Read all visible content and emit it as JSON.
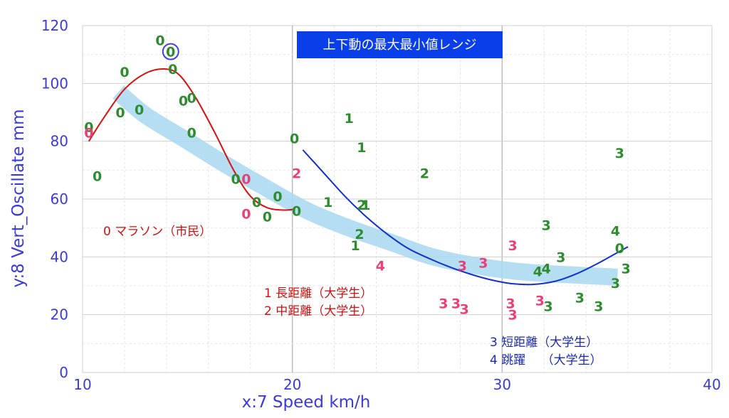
{
  "chart_data": {
    "type": "scatter",
    "title": "上下動の最大最小値レンジ",
    "xlabel": "x:7 Speed km/h",
    "ylabel": "y:8 Vert_Oscillate mm",
    "xlim": [
      10,
      40
    ],
    "ylim": [
      0,
      120
    ],
    "x_ticks": [
      "10",
      "20",
      "30",
      "40"
    ],
    "y_ticks": [
      "0",
      "20",
      "40",
      "60",
      "80",
      "100",
      "120"
    ],
    "grid": true,
    "legend": [
      {
        "group": "0",
        "text": "0  マラソン（市民）",
        "color": "#d01010"
      },
      {
        "group": "1",
        "text": "1  長距離（大学生）",
        "color": "#d01010"
      },
      {
        "group": "2",
        "text": "2  中距離（大学生）",
        "color": "#d01010"
      },
      {
        "group": "3",
        "text": "3  短距離（大学生）",
        "color": "#1a2ab0"
      },
      {
        "group": "4",
        "text": "4  跳躍　 （大学生）",
        "color": "#1a2ab0"
      }
    ],
    "colors": {
      "green": "#2e8b2e",
      "pink": "#e8407a",
      "red_curve": "#d81010",
      "blue_curve": "#1030d0",
      "band": "#a8d8f0",
      "axis_text": "#3a3ad8",
      "title_bg": "#0a3ee8"
    },
    "points": [
      {
        "x": 10.3,
        "y": 85,
        "label": "0",
        "color": "green"
      },
      {
        "x": 10.3,
        "y": 83,
        "label": "0",
        "color": "pink"
      },
      {
        "x": 10.7,
        "y": 68,
        "label": "0",
        "color": "green"
      },
      {
        "x": 11.8,
        "y": 90,
        "label": "0",
        "color": "green"
      },
      {
        "x": 12.0,
        "y": 104,
        "label": "0",
        "color": "green"
      },
      {
        "x": 12.7,
        "y": 91,
        "label": "0",
        "color": "green"
      },
      {
        "x": 13.7,
        "y": 115,
        "label": "0",
        "color": "green"
      },
      {
        "x": 14.2,
        "y": 111,
        "label": "0",
        "color": "green"
      },
      {
        "x": 14.3,
        "y": 105,
        "label": "0",
        "color": "green"
      },
      {
        "x": 14.8,
        "y": 94,
        "label": "0",
        "color": "green"
      },
      {
        "x": 15.2,
        "y": 95,
        "label": "0",
        "color": "green"
      },
      {
        "x": 15.2,
        "y": 83,
        "label": "0",
        "color": "green"
      },
      {
        "x": 17.3,
        "y": 67,
        "label": "0",
        "color": "green"
      },
      {
        "x": 17.8,
        "y": 67,
        "label": "0",
        "color": "pink"
      },
      {
        "x": 17.8,
        "y": 55,
        "label": "0",
        "color": "pink"
      },
      {
        "x": 18.3,
        "y": 59,
        "label": "0",
        "color": "green"
      },
      {
        "x": 18.8,
        "y": 54,
        "label": "0",
        "color": "green"
      },
      {
        "x": 19.3,
        "y": 61,
        "label": "0",
        "color": "green"
      },
      {
        "x": 20.1,
        "y": 81,
        "label": "0",
        "color": "green"
      },
      {
        "x": 20.2,
        "y": 56,
        "label": "0",
        "color": "green"
      },
      {
        "x": 22.7,
        "y": 88,
        "label": "1",
        "color": "green"
      },
      {
        "x": 23.3,
        "y": 78,
        "label": "1",
        "color": "green"
      },
      {
        "x": 21.7,
        "y": 59,
        "label": "1",
        "color": "green"
      },
      {
        "x": 23.5,
        "y": 58,
        "label": "1",
        "color": "green"
      },
      {
        "x": 23.0,
        "y": 44,
        "label": "1",
        "color": "green"
      },
      {
        "x": 23.3,
        "y": 58,
        "label": "2",
        "color": "green"
      },
      {
        "x": 26.3,
        "y": 69,
        "label": "2",
        "color": "green"
      },
      {
        "x": 23.2,
        "y": 48,
        "label": "2",
        "color": "green"
      },
      {
        "x": 20.2,
        "y": 69,
        "label": "2",
        "color": "pink"
      },
      {
        "x": 24.2,
        "y": 37,
        "label": "4",
        "color": "pink"
      },
      {
        "x": 28.1,
        "y": 37,
        "label": "3",
        "color": "pink"
      },
      {
        "x": 29.1,
        "y": 38,
        "label": "3",
        "color": "pink"
      },
      {
        "x": 30.5,
        "y": 44,
        "label": "3",
        "color": "pink"
      },
      {
        "x": 27.2,
        "y": 24,
        "label": "3",
        "color": "pink"
      },
      {
        "x": 27.8,
        "y": 24,
        "label": "3",
        "color": "pink"
      },
      {
        "x": 28.2,
        "y": 22,
        "label": "3",
        "color": "pink"
      },
      {
        "x": 30.4,
        "y": 24,
        "label": "3",
        "color": "pink"
      },
      {
        "x": 30.5,
        "y": 20,
        "label": "3",
        "color": "pink"
      },
      {
        "x": 31.8,
        "y": 25,
        "label": "3",
        "color": "pink"
      },
      {
        "x": 32.1,
        "y": 51,
        "label": "3",
        "color": "green"
      },
      {
        "x": 32.8,
        "y": 40,
        "label": "3",
        "color": "green"
      },
      {
        "x": 32.2,
        "y": 23,
        "label": "3",
        "color": "green"
      },
      {
        "x": 33.7,
        "y": 26,
        "label": "3",
        "color": "green"
      },
      {
        "x": 34.6,
        "y": 23,
        "label": "3",
        "color": "green"
      },
      {
        "x": 35.6,
        "y": 76,
        "label": "3",
        "color": "green"
      },
      {
        "x": 35.4,
        "y": 31,
        "label": "3",
        "color": "green"
      },
      {
        "x": 35.9,
        "y": 36,
        "label": "3",
        "color": "green"
      },
      {
        "x": 31.7,
        "y": 35,
        "label": "4",
        "color": "green"
      },
      {
        "x": 32.1,
        "y": 36,
        "label": "4",
        "color": "green"
      },
      {
        "x": 35.4,
        "y": 49,
        "label": "4",
        "color": "green"
      },
      {
        "x": 35.6,
        "y": 43,
        "label": "0",
        "color": "green"
      }
    ],
    "highlight": {
      "x": 14.2,
      "y": 111
    },
    "band": [
      [
        11.7,
        97
      ],
      [
        13.0,
        89
      ],
      [
        14.8,
        81
      ],
      [
        16.8,
        72
      ],
      [
        18.7,
        64
      ],
      [
        20.7,
        56
      ],
      [
        22.7,
        50
      ],
      [
        24.7,
        45
      ],
      [
        26.7,
        40
      ],
      [
        28.7,
        37
      ],
      [
        30.7,
        35
      ],
      [
        32.7,
        34
      ],
      [
        35.5,
        33
      ]
    ],
    "red_curve": [
      [
        10.3,
        80
      ],
      [
        11.0,
        88
      ],
      [
        12.0,
        98
      ],
      [
        13.0,
        103.5
      ],
      [
        13.9,
        105
      ],
      [
        14.6,
        103
      ],
      [
        15.4,
        95
      ],
      [
        16.3,
        83
      ],
      [
        17.2,
        70
      ],
      [
        18.0,
        61
      ],
      [
        18.8,
        57
      ],
      [
        19.6,
        56.2
      ],
      [
        20.1,
        56.5
      ]
    ],
    "blue_curve": [
      [
        20.5,
        77
      ],
      [
        21.5,
        69
      ],
      [
        22.5,
        61
      ],
      [
        23.5,
        54
      ],
      [
        24.5,
        48
      ],
      [
        25.5,
        43
      ],
      [
        26.5,
        39.5
      ],
      [
        27.5,
        36.5
      ],
      [
        28.5,
        34
      ],
      [
        29.5,
        32
      ],
      [
        30.5,
        30.7
      ],
      [
        31.5,
        30.5
      ],
      [
        32.5,
        31.5
      ],
      [
        33.5,
        34
      ],
      [
        34.5,
        37.5
      ],
      [
        35.5,
        41.5
      ],
      [
        36.0,
        43.5
      ]
    ]
  }
}
